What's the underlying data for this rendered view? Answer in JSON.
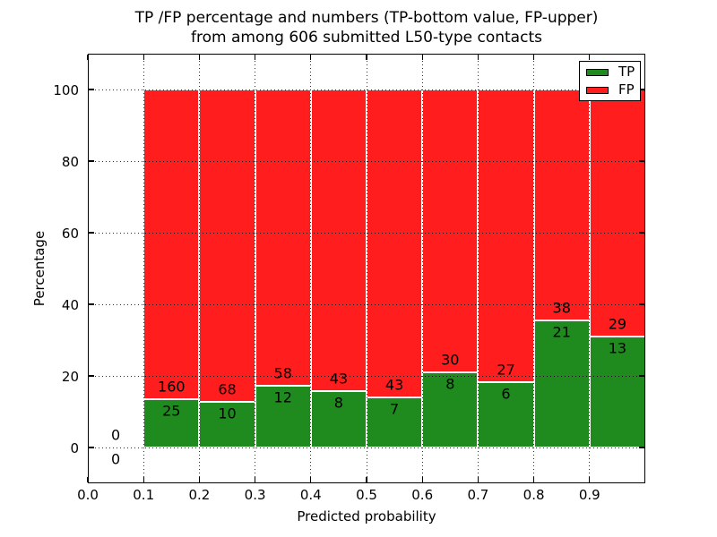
{
  "chart_data": {
    "type": "bar",
    "stacked": true,
    "title_lines": [
      "TP /FP percentage and numbers (TP-bottom value, FP-upper)",
      "from among 606 submitted L50-type contacts"
    ],
    "xlabel": "Predicted probability",
    "ylabel": "Percentage",
    "total_submitted_contacts": 606,
    "xlim": [
      0.0,
      1.0
    ],
    "ylim": [
      -10,
      110
    ],
    "xticks": [
      0.0,
      0.1,
      0.2,
      0.3,
      0.4,
      0.5,
      0.6,
      0.7,
      0.8,
      0.9
    ],
    "xtick_labels": [
      "0.0",
      "0.1",
      "0.2",
      "0.3",
      "0.4",
      "0.5",
      "0.6",
      "0.7",
      "0.8",
      "0.9"
    ],
    "yticks": [
      0,
      20,
      40,
      60,
      80,
      100
    ],
    "ytick_labels": [
      "0",
      "20",
      "40",
      "60",
      "80",
      "100"
    ],
    "grid": {
      "style": "dotted",
      "on": true,
      "above_bars": true
    },
    "legend": {
      "position": "upper right",
      "entries": [
        {
          "label": "TP",
          "series": "tp"
        },
        {
          "label": "FP",
          "series": "fp"
        }
      ]
    },
    "bins": [
      {
        "range": [
          0.0,
          0.1
        ],
        "tp_count": 0,
        "fp_count": 0,
        "tp_pct": 0,
        "fp_pct": 0
      },
      {
        "range": [
          0.1,
          0.2
        ],
        "tp_count": 25,
        "fp_count": 160,
        "tp_pct": 13.51,
        "fp_pct": 86.49
      },
      {
        "range": [
          0.2,
          0.3
        ],
        "tp_count": 10,
        "fp_count": 68,
        "tp_pct": 12.82,
        "fp_pct": 87.18
      },
      {
        "range": [
          0.3,
          0.4
        ],
        "tp_count": 12,
        "fp_count": 58,
        "tp_pct": 17.14,
        "fp_pct": 82.86
      },
      {
        "range": [
          0.4,
          0.5
        ],
        "tp_count": 8,
        "fp_count": 43,
        "tp_pct": 15.69,
        "fp_pct": 84.31
      },
      {
        "range": [
          0.5,
          0.6
        ],
        "tp_count": 7,
        "fp_count": 43,
        "tp_pct": 14.0,
        "fp_pct": 86.0
      },
      {
        "range": [
          0.6,
          0.7
        ],
        "tp_count": 8,
        "fp_count": 30,
        "tp_pct": 21.05,
        "fp_pct": 78.95
      },
      {
        "range": [
          0.7,
          0.8
        ],
        "tp_count": 6,
        "fp_count": 27,
        "tp_pct": 18.18,
        "fp_pct": 81.82
      },
      {
        "range": [
          0.8,
          0.9
        ],
        "tp_count": 21,
        "fp_count": 38,
        "tp_pct": 35.59,
        "fp_pct": 64.41
      },
      {
        "range": [
          0.9,
          1.0
        ],
        "tp_count": 13,
        "fp_count": 29,
        "tp_pct": 30.95,
        "fp_pct": 69.05
      }
    ],
    "colors": {
      "tp": "#1f8b1f",
      "fp": "#ff1d1d",
      "bar_edge": "#ffffff",
      "grid": "#000000",
      "frame": "#000000",
      "text": "#000000",
      "background": "#ffffff"
    }
  }
}
